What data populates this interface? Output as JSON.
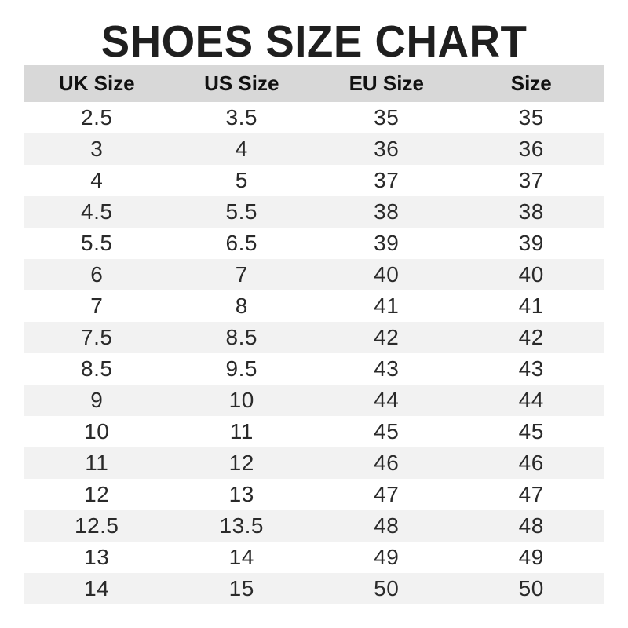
{
  "title": "SHOES SIZE CHART",
  "colors": {
    "header_bg": "#d8d8d8",
    "stripe_bg": "#f2f2f2",
    "title_text": "#1f1f1f",
    "cell_text": "#2a2a2a"
  },
  "chart_data": {
    "type": "table",
    "title": "SHOES SIZE CHART",
    "columns": [
      "UK Size",
      "US Size",
      "EU Size",
      "Size"
    ],
    "rows": [
      [
        "2.5",
        "3.5",
        "35",
        "35"
      ],
      [
        "3",
        "4",
        "36",
        "36"
      ],
      [
        "4",
        "5",
        "37",
        "37"
      ],
      [
        "4.5",
        "5.5",
        "38",
        "38"
      ],
      [
        "5.5",
        "6.5",
        "39",
        "39"
      ],
      [
        "6",
        "7",
        "40",
        "40"
      ],
      [
        "7",
        "8",
        "41",
        "41"
      ],
      [
        "7.5",
        "8.5",
        "42",
        "42"
      ],
      [
        "8.5",
        "9.5",
        "43",
        "43"
      ],
      [
        "9",
        "10",
        "44",
        "44"
      ],
      [
        "10",
        "11",
        "45",
        "45"
      ],
      [
        "11",
        "12",
        "46",
        "46"
      ],
      [
        "12",
        "13",
        "47",
        "47"
      ],
      [
        "12.5",
        "13.5",
        "48",
        "48"
      ],
      [
        "13",
        "14",
        "49",
        "49"
      ],
      [
        "14",
        "15",
        "50",
        "50"
      ]
    ],
    "layout": {
      "striped_rows": true,
      "stripe_pattern": "even-rows-gray",
      "header_row": true,
      "grid": false
    }
  }
}
